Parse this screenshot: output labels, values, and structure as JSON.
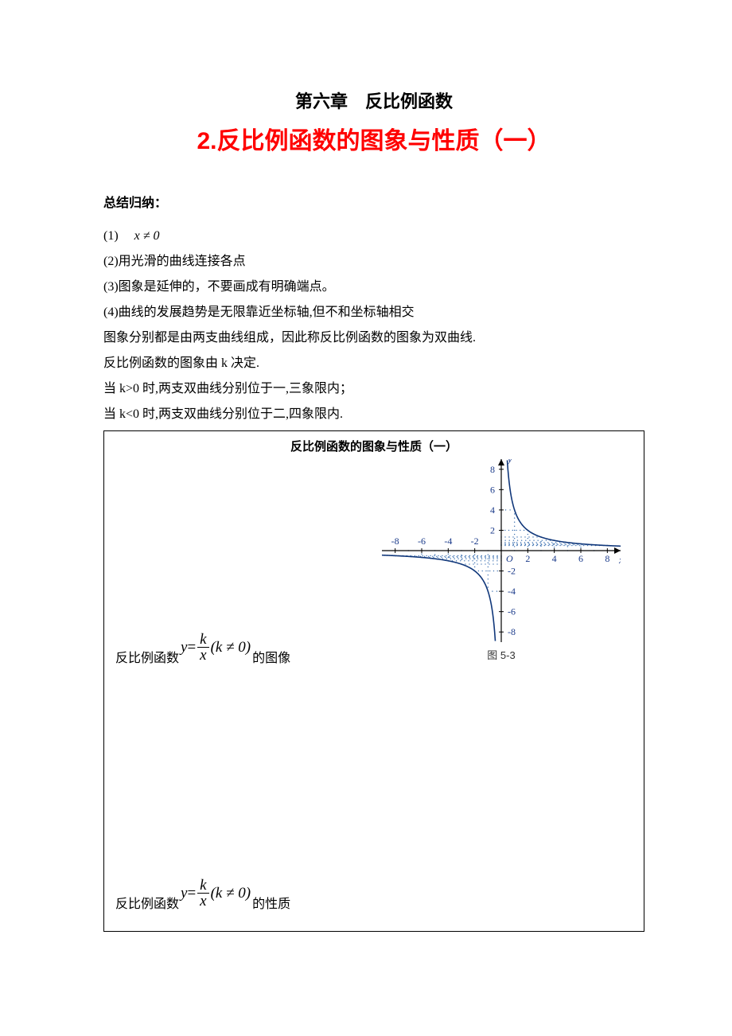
{
  "chapter": "第六章　反比例函数",
  "title": "2.反比例函数的图象与性质（一）",
  "summary_head": "总结归纳：",
  "points": {
    "p1_prefix": "(1)　",
    "p1_math": "x ≠ 0",
    "p2": "(2)用光滑的曲线连接各点",
    "p3": "(3)图象是延伸的，不要画成有明确端点。",
    "p4": "(4)曲线的发展趋势是无限靠近坐标轴,但不和坐标轴相交",
    "p5": "图象分别都是由两支曲线组成，因此称反比例函数的图象为双曲线.",
    "p6": "反比例函数的图象由 k 决定.",
    "p7": "当 k>0 时,两支双曲线分别位于一,三象限内；",
    "p8": "当 k<0 时,两支双曲线分别位于二,四象限内."
  },
  "box": {
    "title": "反比例函数的图象与性质（一）",
    "formula_prefix": "反比例函数",
    "formula_tex_y": "y",
    "formula_eq": " = ",
    "formula_num": "k",
    "formula_den": "x",
    "formula_cond": "(k ≠ 0)",
    "formula_suffix1": "的图像",
    "formula_suffix2": "的性质",
    "graph": {
      "caption": "图 5-3",
      "x_label": "x",
      "y_label": "y",
      "origin": "O",
      "x_ticks": [
        -8,
        -6,
        -4,
        -2,
        2,
        4,
        6,
        8
      ],
      "y_ticks": [
        -8,
        -6,
        -4,
        -2,
        2,
        4,
        6,
        8
      ],
      "range": {
        "xmin": -9,
        "xmax": 9,
        "ymin": -9,
        "ymax": 9
      },
      "curve_k": 4,
      "colors": {
        "axis": "#000000",
        "tick_text": "#1a3a8a",
        "curve": "#10377a",
        "dots": "#3a6fb0",
        "bg": "#ffffff"
      },
      "font_size_tick": 12,
      "font_size_axis_label": 13,
      "curve_width": 1.6,
      "axis_width": 1.2
    }
  }
}
